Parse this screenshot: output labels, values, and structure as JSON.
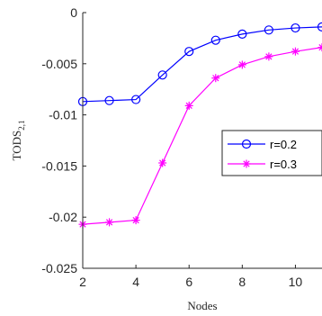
{
  "chart_data": {
    "type": "line",
    "xlabel": "Nodes",
    "ylabel_main": "TODS",
    "ylabel_sub": "2,1",
    "x": [
      2,
      3,
      4,
      5,
      6,
      7,
      8,
      9,
      10,
      11
    ],
    "xlim": [
      2,
      11
    ],
    "ylim": [
      -0.025,
      0
    ],
    "xticks": [
      2,
      4,
      6,
      8,
      10
    ],
    "xtick_labels": [
      "2",
      "4",
      "6",
      "8",
      "10"
    ],
    "yticks": [
      0,
      -0.005,
      -0.01,
      -0.015,
      -0.02,
      -0.025
    ],
    "ytick_labels": [
      "0",
      "-0.005",
      "-0.01",
      "-0.015",
      "-0.02",
      "-0.025"
    ],
    "grid": false,
    "legend_position": "center-right",
    "series": [
      {
        "name": "r=0.2",
        "color": "#0000ff",
        "marker": "circle",
        "values": [
          -0.0087,
          -0.0086,
          -0.0085,
          -0.0061,
          -0.0038,
          -0.0027,
          -0.0021,
          -0.0017,
          -0.0015,
          -0.0014
        ]
      },
      {
        "name": "r=0.3",
        "color": "#ff00ff",
        "marker": "asterisk",
        "values": [
          -0.0207,
          -0.0205,
          -0.0203,
          -0.0147,
          -0.0091,
          -0.0064,
          -0.0051,
          -0.0043,
          -0.0038,
          -0.0034
        ]
      }
    ]
  }
}
